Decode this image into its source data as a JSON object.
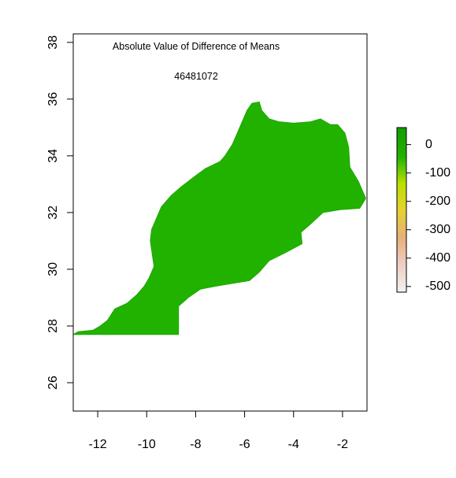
{
  "plot": {
    "title_line1": "Absolute Value of Difference of Means",
    "title_line2": "46481072"
  },
  "map": {
    "region_fill": "#21b200",
    "region_edge": "#1ea800",
    "x_axis": {
      "range": [
        -13.0,
        -1.0
      ],
      "ticks": [
        -12,
        -10,
        -8,
        -6,
        -4,
        -2
      ],
      "tick_labels": [
        "-12",
        "-10",
        "-8",
        "-6",
        "-4",
        "-2"
      ]
    },
    "y_axis": {
      "range": [
        25.0,
        38.3
      ],
      "ticks": [
        26,
        28,
        30,
        32,
        34,
        36,
        38
      ],
      "tick_labels": [
        "26",
        "28",
        "30",
        "32",
        "34",
        "36",
        "38"
      ]
    },
    "region_outline_lonlat": [
      [
        -13.0,
        27.7
      ],
      [
        -12.8,
        27.8
      ],
      [
        -12.2,
        27.85
      ],
      [
        -11.9,
        28.0
      ],
      [
        -11.6,
        28.2
      ],
      [
        -11.3,
        28.6
      ],
      [
        -10.8,
        28.8
      ],
      [
        -10.4,
        29.1
      ],
      [
        -10.1,
        29.4
      ],
      [
        -9.9,
        29.7
      ],
      [
        -9.7,
        30.1
      ],
      [
        -9.75,
        30.4
      ],
      [
        -9.85,
        31.0
      ],
      [
        -9.8,
        31.4
      ],
      [
        -9.6,
        31.8
      ],
      [
        -9.4,
        32.2
      ],
      [
        -9.0,
        32.6
      ],
      [
        -8.6,
        32.9
      ],
      [
        -8.0,
        33.3
      ],
      [
        -7.6,
        33.55
      ],
      [
        -7.0,
        33.8
      ],
      [
        -6.8,
        34.0
      ],
      [
        -6.5,
        34.4
      ],
      [
        -6.3,
        34.8
      ],
      [
        -6.1,
        35.2
      ],
      [
        -5.9,
        35.6
      ],
      [
        -5.7,
        35.85
      ],
      [
        -5.4,
        35.9
      ],
      [
        -5.3,
        35.6
      ],
      [
        -5.0,
        35.3
      ],
      [
        -4.6,
        35.2
      ],
      [
        -4.0,
        35.15
      ],
      [
        -3.3,
        35.2
      ],
      [
        -2.9,
        35.3
      ],
      [
        -2.5,
        35.1
      ],
      [
        -2.2,
        35.1
      ],
      [
        -1.9,
        34.8
      ],
      [
        -1.75,
        34.3
      ],
      [
        -1.7,
        33.6
      ],
      [
        -1.35,
        33.1
      ],
      [
        -1.05,
        32.5
      ],
      [
        -1.3,
        32.15
      ],
      [
        -2.1,
        32.1
      ],
      [
        -2.8,
        32.0
      ],
      [
        -3.3,
        31.6
      ],
      [
        -3.7,
        31.3
      ],
      [
        -3.65,
        30.9
      ],
      [
        -4.3,
        30.6
      ],
      [
        -5.0,
        30.3
      ],
      [
        -5.4,
        29.9
      ],
      [
        -5.8,
        29.6
      ],
      [
        -6.5,
        29.5
      ],
      [
        -7.2,
        29.4
      ],
      [
        -7.8,
        29.3
      ],
      [
        -8.3,
        29.0
      ],
      [
        -8.7,
        28.7
      ],
      [
        -8.7,
        27.7
      ]
    ]
  },
  "legend": {
    "gradient_colors": [
      "#f2f2f2",
      "#eeccc0",
      "#e6b07a",
      "#e6d22e",
      "#b8e000",
      "#21b200",
      "#119e00"
    ],
    "value_range": [
      -520,
      60
    ],
    "ticks": [
      0,
      -100,
      -200,
      -300,
      -400,
      -500
    ],
    "tick_labels": [
      "0",
      "-100",
      "-200",
      "-300",
      "-400",
      "-500"
    ]
  }
}
